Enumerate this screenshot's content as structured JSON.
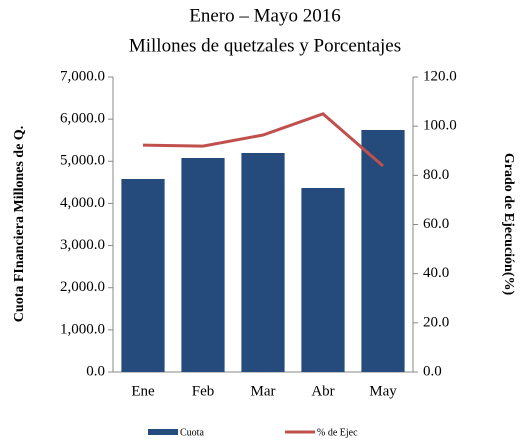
{
  "chart_data": {
    "type": "bar-line",
    "title": "Enero – Mayo 2016",
    "subtitle": "Millones de quetzales y Porcentajes",
    "y_label": "Cuota FInanciera  Millones de Q.",
    "y2_label": "Grado de Ejecución(%)",
    "categories": [
      "Ene",
      "Feb",
      "Mar",
      "Abr",
      "May"
    ],
    "series": [
      {
        "name": "Cuota",
        "type": "bar",
        "color": "#254a7c",
        "values": [
          4580,
          5078,
          5197,
          4366,
          5743
        ]
      },
      {
        "name": "% de Ejec",
        "type": "line",
        "axis": "y2",
        "color": "#c0504d",
        "values": [
          92.3,
          91.9,
          96.4,
          105.0,
          83.8
        ]
      }
    ],
    "ylim": [
      0,
      7000
    ],
    "yticks": [
      {
        "value": 0,
        "label": "0.0"
      },
      {
        "value": 1000,
        "label": "1,000.0"
      },
      {
        "value": 2000,
        "label": "2,000.0"
      },
      {
        "value": 3000,
        "label": "3,000.0"
      },
      {
        "value": 4000,
        "label": "4,000.0"
      },
      {
        "value": 5000,
        "label": "5,000.0"
      },
      {
        "value": 6000,
        "label": "6,000.0"
      },
      {
        "value": 7000,
        "label": "7,000.0"
      }
    ],
    "y2lim": [
      0,
      120
    ],
    "y2ticks": [
      {
        "value": 0,
        "label": "0.0"
      },
      {
        "value": 20,
        "label": "20.0"
      },
      {
        "value": 40,
        "label": "40.0"
      },
      {
        "value": 60,
        "label": "60.0"
      },
      {
        "value": 80,
        "label": "80.0"
      },
      {
        "value": 100,
        "label": "100.0"
      },
      {
        "value": 120,
        "label": "120.0"
      }
    ],
    "legend": "bottom"
  }
}
